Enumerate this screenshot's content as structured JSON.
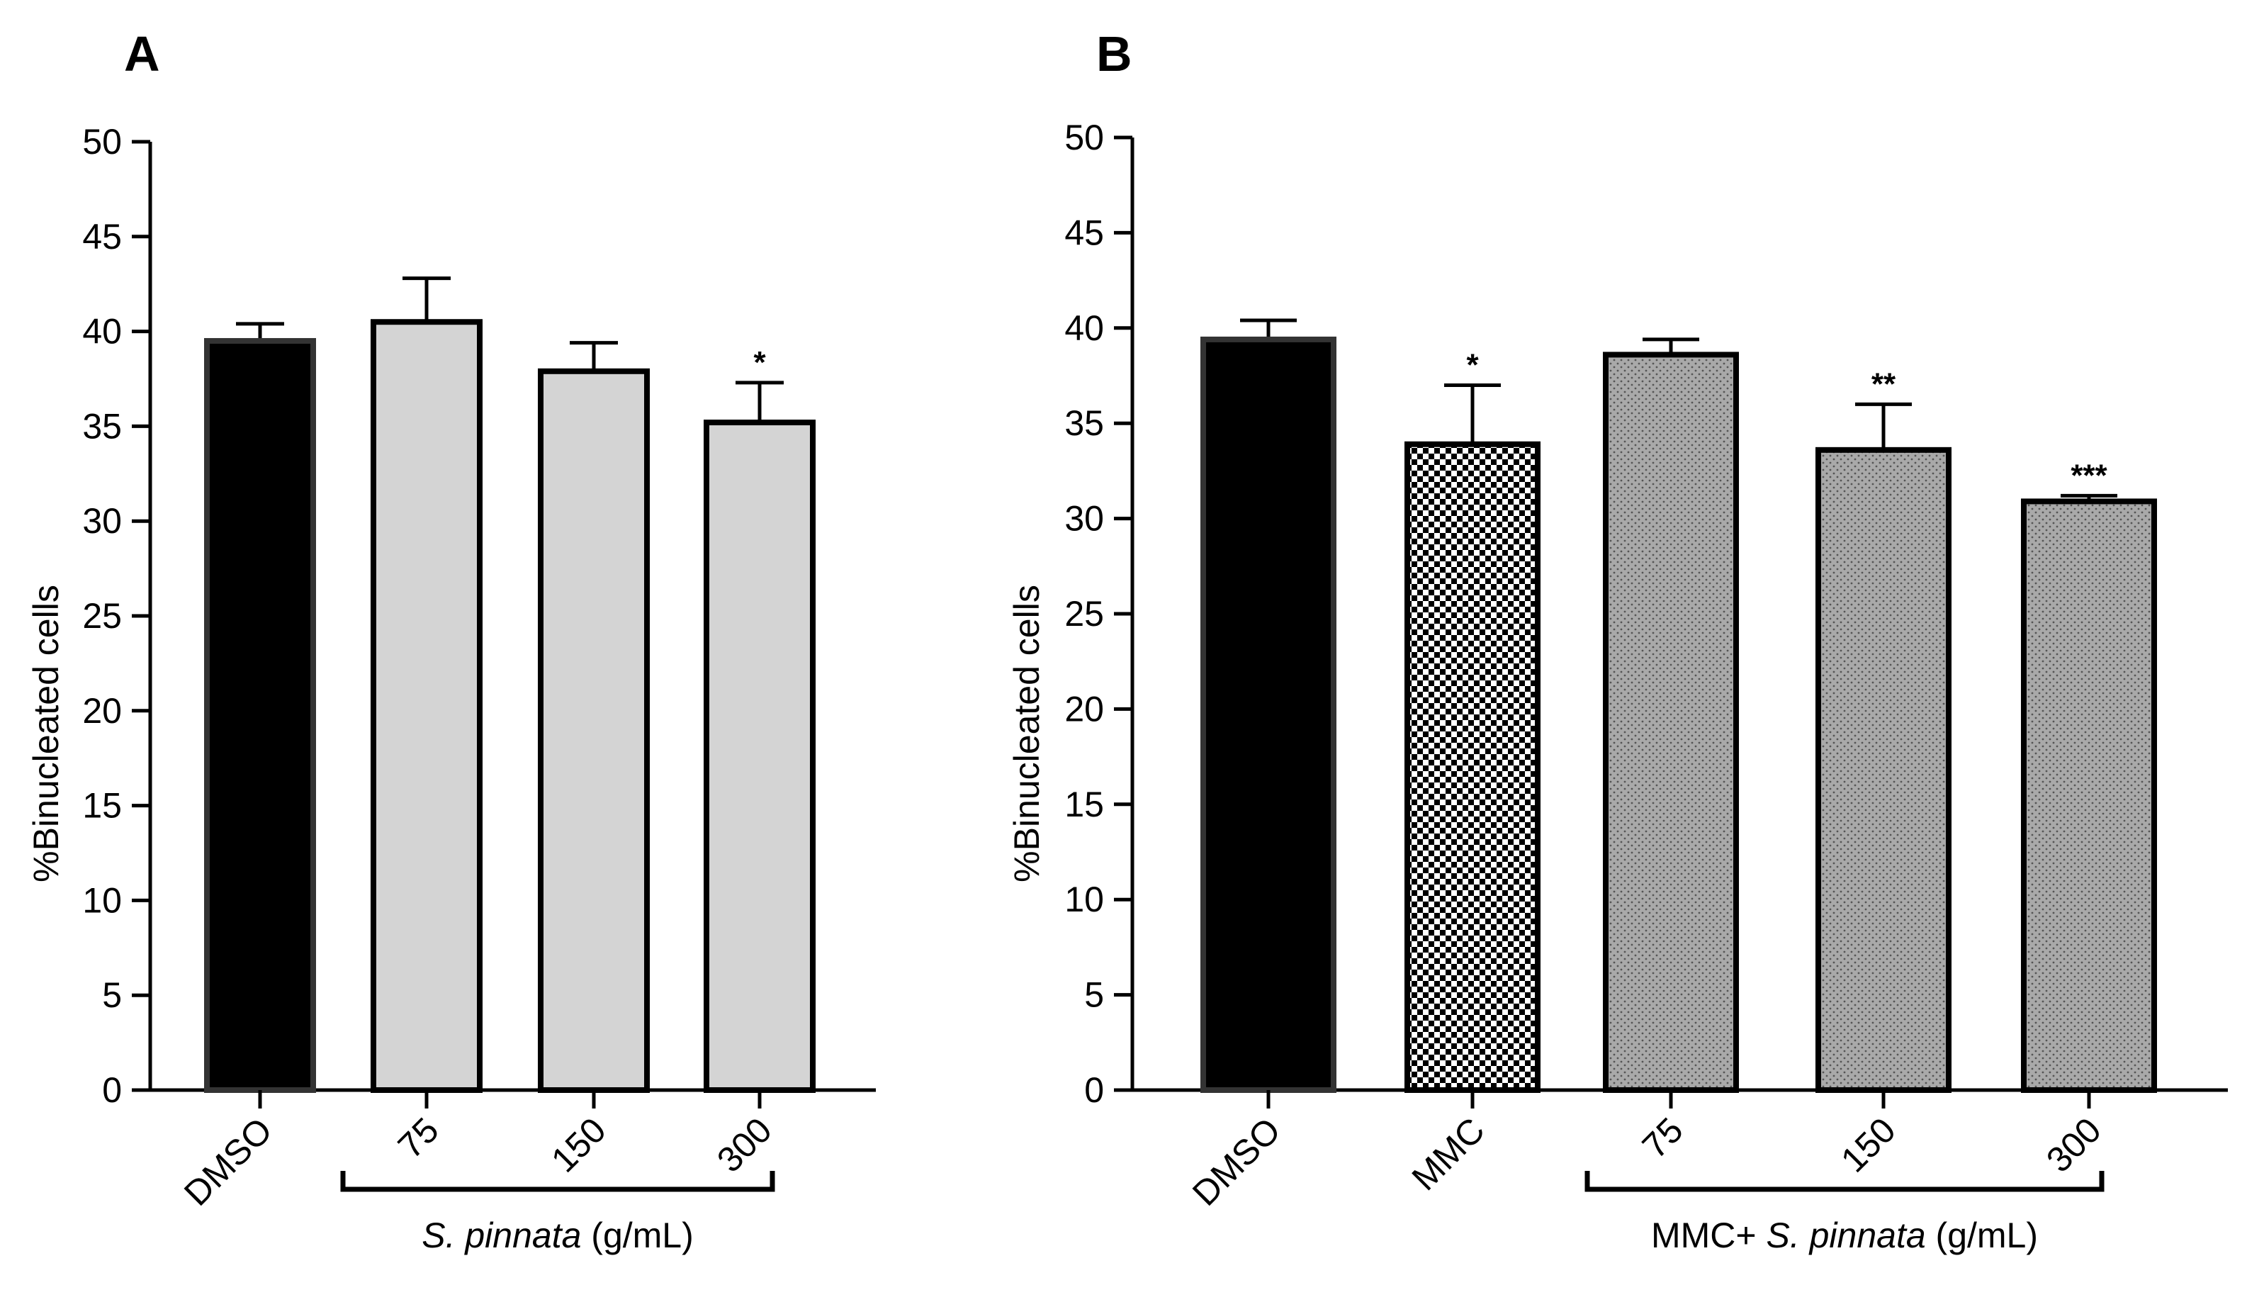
{
  "chart_data": [
    {
      "type": "bar",
      "panel": "A",
      "ylabel": "%Binucleated cells",
      "ylim": [
        0,
        50
      ],
      "yticks": [
        0,
        5,
        10,
        15,
        20,
        25,
        30,
        35,
        40,
        45,
        50
      ],
      "categories": [
        "DMSO",
        "75",
        "150",
        "300"
      ],
      "values": [
        39.5,
        40.5,
        37.9,
        35.2
      ],
      "errors": [
        0.9,
        2.3,
        1.5,
        2.1
      ],
      "fills": [
        "black",
        "lightgray",
        "lightgray",
        "lightgray"
      ],
      "significance": [
        "",
        "",
        "",
        "*"
      ],
      "group": {
        "from_index": 1,
        "to_index": 3,
        "label_italic": "S. pinnata",
        "label_rest": " (g/mL)"
      }
    },
    {
      "type": "bar",
      "panel": "B",
      "ylabel": "%Binucleated cells",
      "ylim": [
        0,
        50
      ],
      "yticks": [
        0,
        5,
        10,
        15,
        20,
        25,
        30,
        35,
        40,
        45,
        50
      ],
      "categories": [
        "DMSO",
        "MMC",
        "75",
        "150",
        "300"
      ],
      "values": [
        39.4,
        33.9,
        38.6,
        33.6,
        30.9
      ],
      "errors": [
        1.0,
        3.1,
        0.8,
        2.4,
        0.3
      ],
      "fills": [
        "black",
        "checker",
        "dots",
        "dots",
        "dots"
      ],
      "significance": [
        "",
        "*",
        "",
        "**",
        "***"
      ],
      "group": {
        "from_index": 2,
        "to_index": 4,
        "label_prefix": "MMC+ ",
        "label_italic": "S. pinnata",
        "label_rest": " (g/mL)"
      }
    }
  ],
  "colors": {
    "black": "#000000",
    "lightgray": "#d4d4d4",
    "dotted_gray": "#a9a9a9",
    "dot": "#555555"
  }
}
